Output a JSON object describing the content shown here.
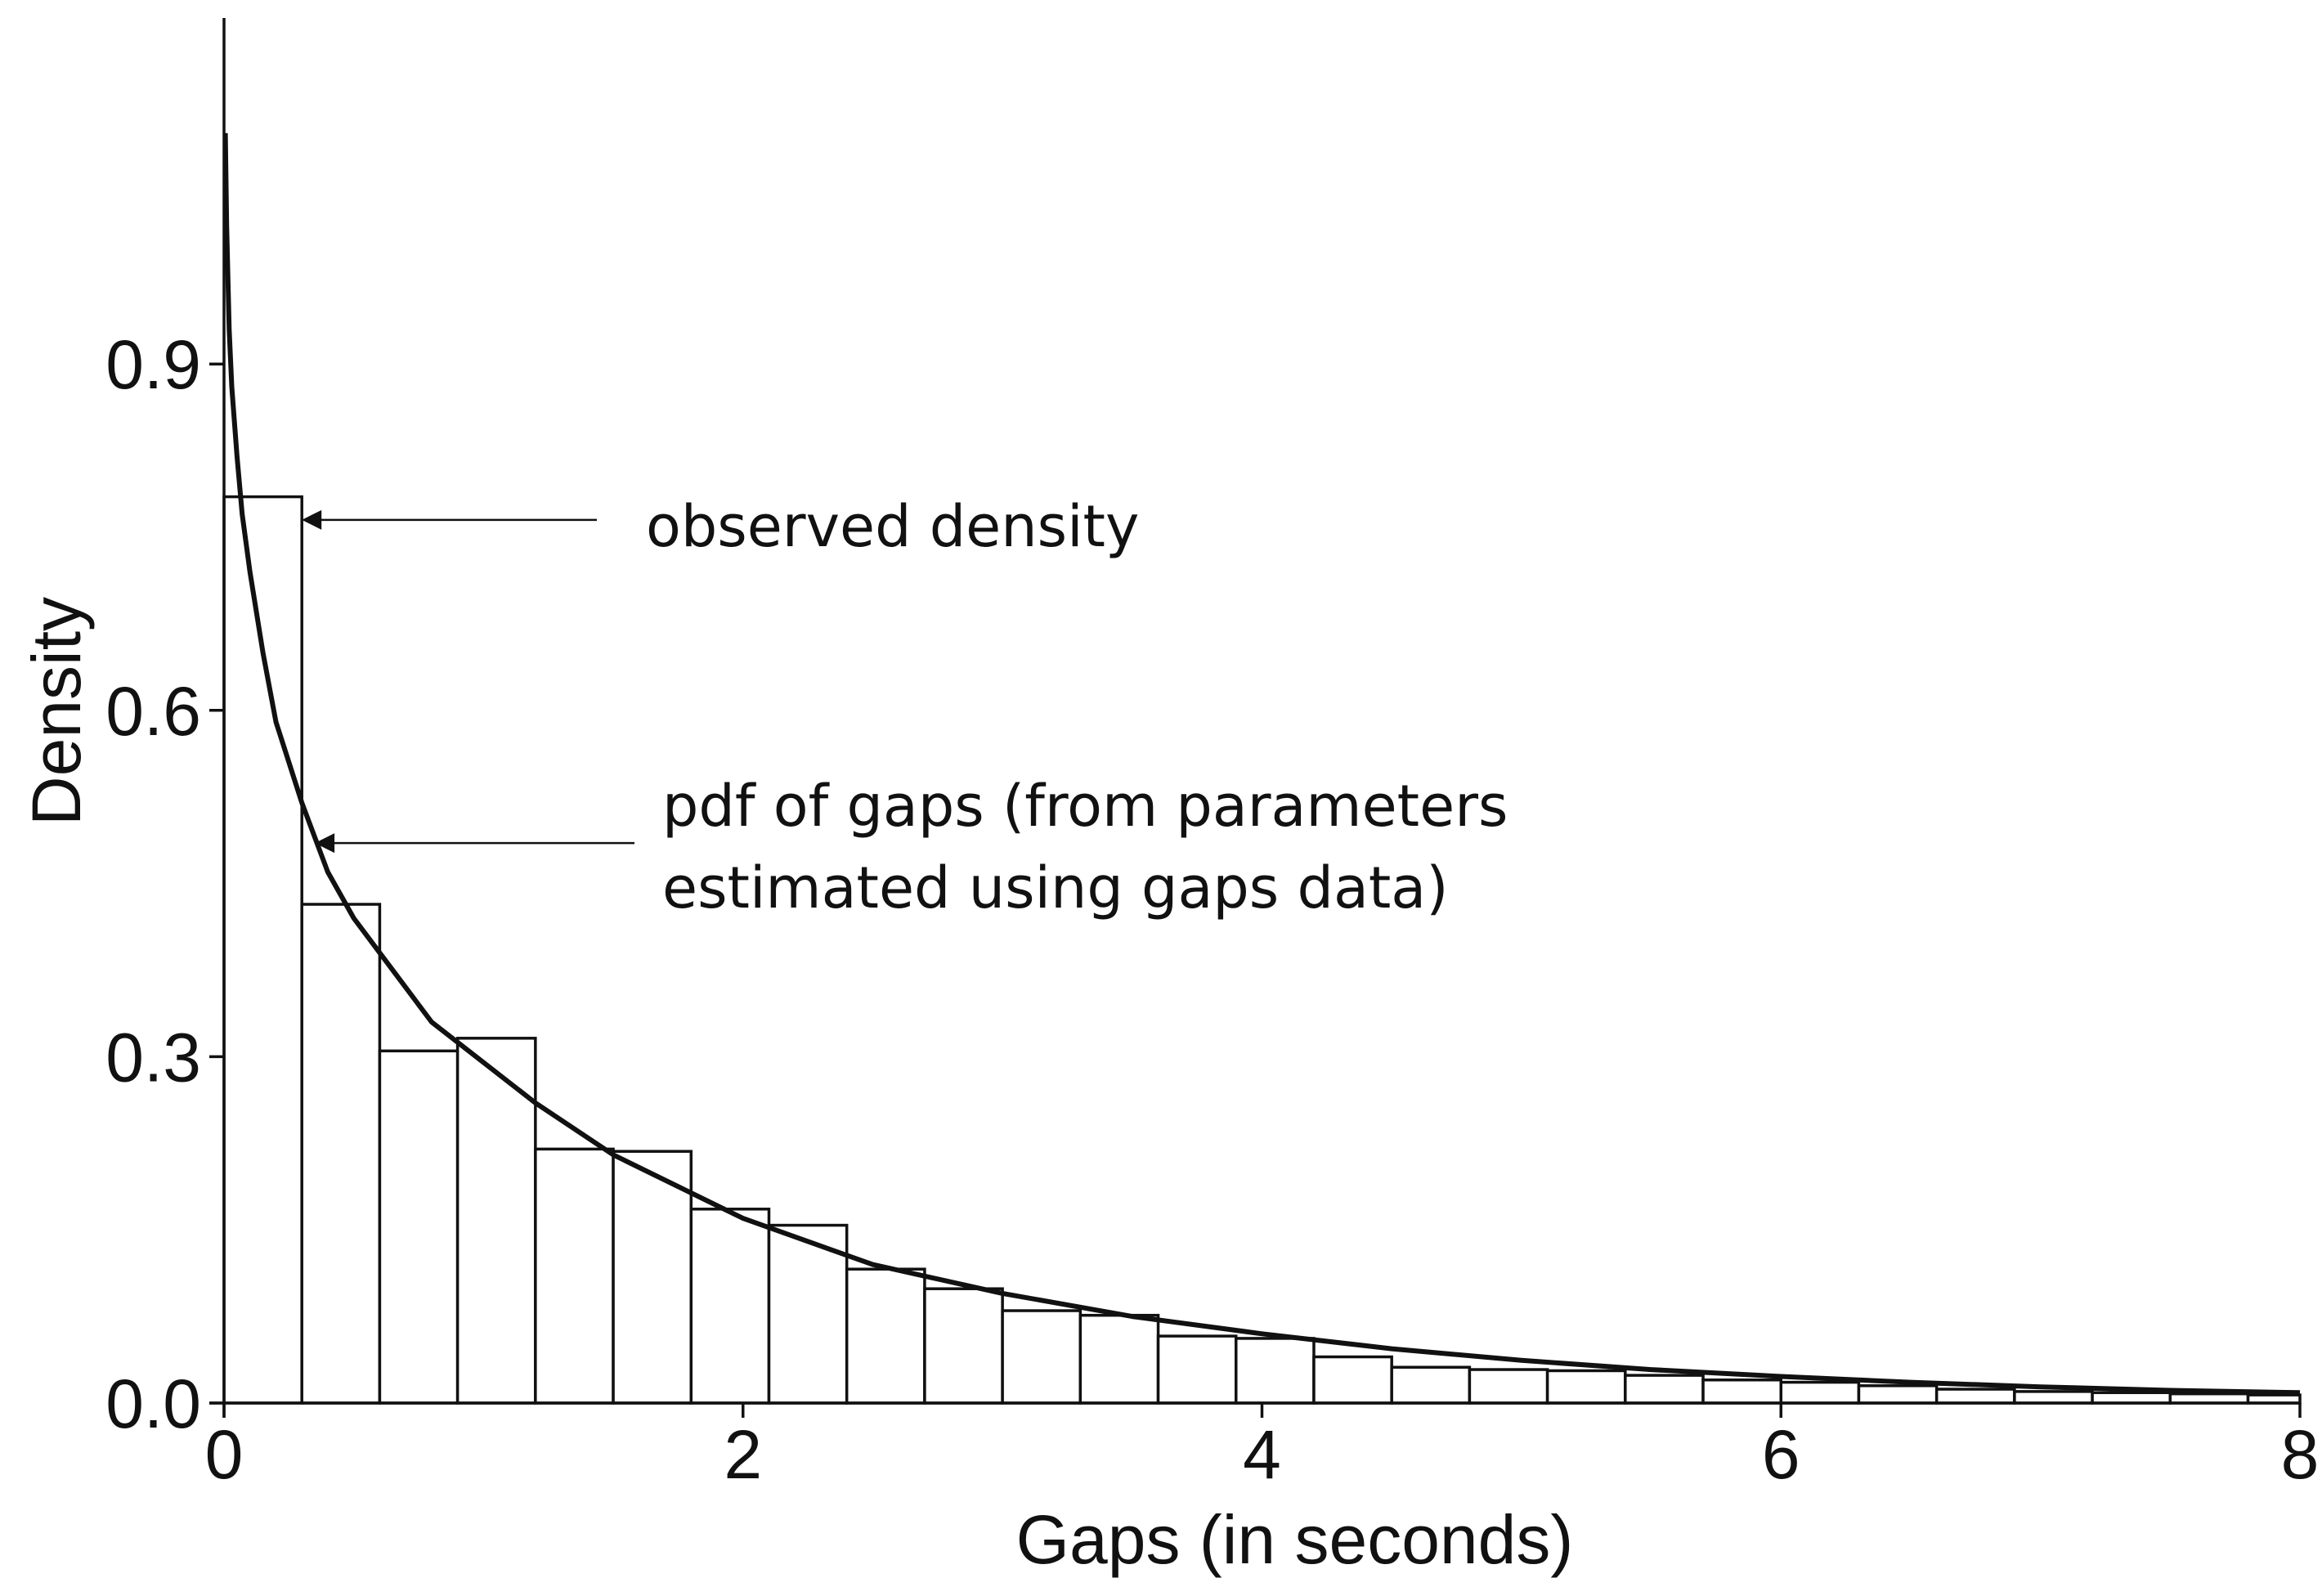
{
  "chart_data": {
    "type": "bar",
    "xlabel": "Gaps (in seconds)",
    "ylabel": "Density",
    "xlim": [
      0,
      8
    ],
    "ylim": [
      0,
      1.2
    ],
    "x_ticks": [
      0,
      2,
      4,
      6,
      8
    ],
    "x_tick_labels": [
      "0",
      "2",
      "4",
      "6",
      "8"
    ],
    "y_ticks": [
      0.0,
      0.3,
      0.6,
      0.9
    ],
    "y_tick_labels": [
      "0.0",
      "0.3",
      "0.6",
      "0.9"
    ],
    "grid": false,
    "histogram": {
      "bin_width": 0.3,
      "bin_edges_start": 0,
      "values": [
        0.785,
        0.432,
        0.305,
        0.316,
        0.22,
        0.218,
        0.168,
        0.154,
        0.116,
        0.099,
        0.08,
        0.076,
        0.058,
        0.056,
        0.04,
        0.031,
        0.029,
        0.028,
        0.024,
        0.02,
        0.018,
        0.015,
        0.012,
        0.01,
        0.009,
        0.008,
        0.007
      ]
    },
    "pdf_curve": {
      "x": [
        0.005,
        0.01,
        0.02,
        0.03,
        0.05,
        0.07,
        0.1,
        0.15,
        0.2,
        0.3,
        0.4,
        0.5,
        0.6,
        0.8,
        1.0,
        1.2,
        1.5,
        2.0,
        2.5,
        3.0,
        3.5,
        4.0,
        4.5,
        5.0,
        5.5,
        6.0,
        6.5,
        7.0,
        7.5,
        8.0
      ],
      "y": [
        1.1,
        1.02,
        0.93,
        0.88,
        0.82,
        0.77,
        0.72,
        0.65,
        0.59,
        0.52,
        0.46,
        0.42,
        0.39,
        0.33,
        0.295,
        0.26,
        0.215,
        0.16,
        0.12,
        0.095,
        0.075,
        0.06,
        0.047,
        0.037,
        0.029,
        0.023,
        0.018,
        0.014,
        0.011,
        0.009
      ]
    },
    "annotations": [
      {
        "lines": [
          "observed density"
        ],
        "points_to_x": 0.3,
        "points_to_y": 0.765
      },
      {
        "lines": [
          "pdf of gaps (from parameters",
          "estimated using gaps data)"
        ],
        "points_to_x": 0.35,
        "points_to_y": 0.485
      }
    ]
  }
}
